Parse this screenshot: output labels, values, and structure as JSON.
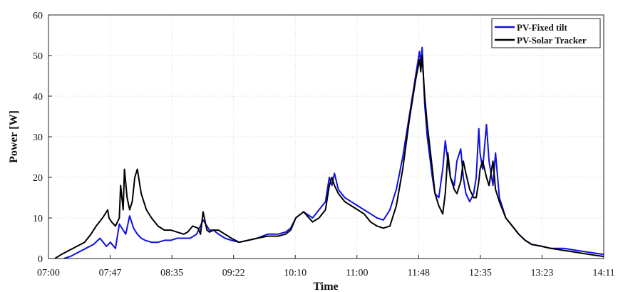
{
  "chart_data": {
    "type": "line",
    "xlabel": "Time",
    "ylabel": "Power [W]",
    "xlim": [
      "07:00",
      "14:11"
    ],
    "ylim": [
      0,
      60
    ],
    "x_ticks": [
      "07:00",
      "07:47",
      "08:35",
      "09:22",
      "10:10",
      "11:00",
      "11:48",
      "12:35",
      "13:23",
      "14:11"
    ],
    "y_ticks": [
      0,
      10,
      20,
      30,
      40,
      50,
      60
    ],
    "grid": true,
    "legend": "top-right",
    "colors": {
      "fixed": "#1010e0",
      "tracker": "#000000"
    },
    "series": [
      {
        "name": "PV-Fixed tilt",
        "x": [
          "07:12",
          "07:17",
          "07:23",
          "07:29",
          "07:35",
          "07:40",
          "07:45",
          "07:48",
          "07:52",
          "07:55",
          "07:58",
          "08:00",
          "08:03",
          "08:06",
          "08:09",
          "08:12",
          "08:15",
          "08:20",
          "08:25",
          "08:30",
          "08:35",
          "08:40",
          "08:45",
          "08:50",
          "08:55",
          "09:00",
          "09:03",
          "09:05",
          "09:08",
          "09:12",
          "09:17",
          "09:22",
          "09:28",
          "09:35",
          "09:42",
          "09:50",
          "09:58",
          "10:04",
          "10:08",
          "10:12",
          "10:18",
          "10:25",
          "10:30",
          "10:35",
          "10:38",
          "10:40",
          "10:42",
          "10:45",
          "10:50",
          "10:55",
          "11:00",
          "11:05",
          "11:10",
          "11:15",
          "11:20",
          "11:25",
          "11:30",
          "11:35",
          "11:40",
          "11:45",
          "11:48",
          "11:49",
          "11:50",
          "11:52",
          "11:54",
          "11:58",
          "12:00",
          "12:03",
          "12:06",
          "12:08",
          "12:10",
          "12:12",
          "12:15",
          "12:17",
          "12:20",
          "12:22",
          "12:24",
          "12:27",
          "12:30",
          "12:32",
          "12:34",
          "12:35",
          "12:37",
          "12:40",
          "12:42",
          "12:45",
          "12:47",
          "12:50",
          "12:55",
          "13:00",
          "13:05",
          "13:10",
          "13:15",
          "13:23",
          "13:30",
          "13:40",
          "13:50",
          "14:00",
          "14:11"
        ],
        "values": [
          0,
          0.5,
          1.5,
          2.5,
          3.5,
          5,
          3,
          4,
          2.5,
          8.5,
          7,
          6,
          10.5,
          7.5,
          6,
          5,
          4.5,
          4,
          4,
          4.5,
          4.5,
          5,
          5,
          5,
          6,
          9.5,
          8,
          7,
          7,
          6,
          5,
          4.5,
          4,
          4.5,
          5,
          6,
          6,
          6.5,
          7.5,
          10,
          11.5,
          10,
          12,
          14,
          20,
          18,
          21,
          17,
          15,
          14,
          13,
          12,
          11,
          10,
          9.5,
          12,
          17,
          25,
          35,
          45,
          51,
          48,
          52,
          38,
          30,
          20,
          16,
          15,
          22,
          29,
          24,
          20,
          18,
          24,
          27,
          20,
          16,
          14,
          16,
          20,
          32,
          26,
          22,
          33,
          24,
          18,
          26,
          15,
          10,
          8,
          6,
          4.5,
          3.5,
          3,
          2.5,
          2.5,
          2,
          1.5,
          1
        ]
      },
      {
        "name": "PV-Solar Tracker",
        "x": [
          "07:05",
          "07:10",
          "07:16",
          "07:22",
          "07:28",
          "07:33",
          "07:37",
          "07:42",
          "07:46",
          "07:47",
          "07:49",
          "07:52",
          "07:55",
          "07:56",
          "07:58",
          "07:59",
          "08:01",
          "08:03",
          "08:05",
          "08:07",
          "08:09",
          "08:12",
          "08:16",
          "08:20",
          "08:25",
          "08:30",
          "08:35",
          "08:40",
          "08:45",
          "08:48",
          "08:52",
          "08:56",
          "08:58",
          "09:00",
          "09:03",
          "09:05",
          "09:08",
          "09:12",
          "09:17",
          "09:22",
          "09:28",
          "09:35",
          "09:42",
          "09:50",
          "09:58",
          "10:04",
          "10:08",
          "10:12",
          "10:18",
          "10:25",
          "10:30",
          "10:35",
          "10:38",
          "10:40",
          "10:42",
          "10:45",
          "10:50",
          "10:55",
          "11:00",
          "11:05",
          "11:10",
          "11:15",
          "11:20",
          "11:25",
          "11:30",
          "11:35",
          "11:40",
          "11:45",
          "11:48",
          "11:49",
          "11:50",
          "11:52",
          "11:54",
          "11:58",
          "12:00",
          "12:03",
          "12:06",
          "12:08",
          "12:10",
          "12:12",
          "12:15",
          "12:17",
          "12:20",
          "12:22",
          "12:24",
          "12:27",
          "12:30",
          "12:32",
          "12:34",
          "12:35",
          "12:37",
          "12:40",
          "12:42",
          "12:45",
          "12:47",
          "12:50",
          "12:55",
          "13:00",
          "13:05",
          "13:10",
          "13:15",
          "13:23",
          "13:30",
          "13:40",
          "13:50",
          "14:00",
          "14:11"
        ],
        "values": [
          0,
          1,
          2,
          3,
          4,
          6,
          8,
          10,
          12,
          10,
          9,
          8,
          10,
          18,
          12,
          22,
          15,
          12,
          14,
          20,
          22,
          16,
          12,
          10,
          8,
          7,
          7,
          6.5,
          6,
          6.5,
          8,
          7.5,
          6,
          11.5,
          7,
          6.5,
          7,
          7,
          6,
          5,
          4,
          4.5,
          5,
          5.5,
          5.5,
          6,
          7,
          10,
          11.5,
          9,
          10,
          12,
          18,
          20,
          18,
          16,
          14,
          13,
          12,
          11,
          9,
          8,
          7.5,
          8,
          13,
          22,
          34,
          44,
          49,
          46,
          50,
          40,
          33,
          22,
          16,
          13,
          11,
          16,
          26,
          20,
          17,
          16,
          19,
          24,
          21,
          17,
          15,
          15,
          19,
          22,
          24,
          20,
          18,
          24,
          17,
          14,
          10,
          8,
          6,
          4.5,
          3.5,
          3,
          2.5,
          2,
          1.5,
          1,
          0.5
        ]
      }
    ]
  }
}
